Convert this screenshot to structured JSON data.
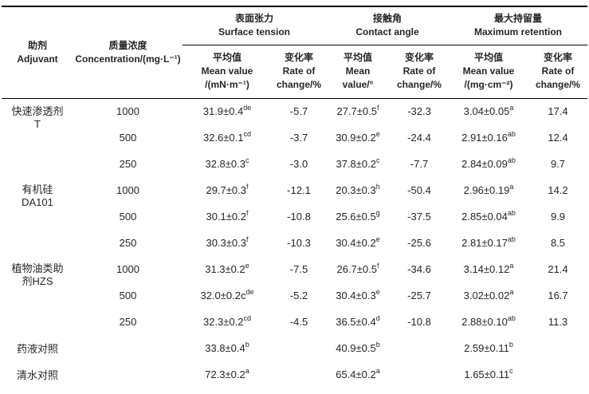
{
  "colors": {
    "background": "#ffffff",
    "text": "#262626",
    "rule_line": "#000000"
  },
  "table": {
    "groups": [
      "表面张力\nSurface tension",
      "接触角\nContact angle",
      "最大持留量\nMaximum retention"
    ],
    "col_headers": {
      "adjuvant": "助剂\nAdjuvant",
      "concentration": "质量浓度\nConcentration/(mg·L⁻¹)",
      "st_mean": "平均值\nMean value\n/(mN·m⁻¹)",
      "st_rate": "变化率\nRate of\nchange/%",
      "ca_mean": "平均值\nMean\nvalue/°",
      "ca_rate": "变化率\nRate of\nchange/%",
      "mr_mean": "平均值\nMean value\n/(mg·cm⁻²)",
      "mr_rate": "变化率\nRate of\nchange/%"
    },
    "rows": [
      {
        "label": "快速渗透剂\nT",
        "rowspan": 3,
        "cells": {
          "conc": "1000",
          "st_mean": {
            "v": "31.9±0.4",
            "s": "de"
          },
          "st_rate": "-5.7",
          "ca_mean": {
            "v": "27.7±0.5",
            "s": "f"
          },
          "ca_rate": "-32.3",
          "mr_mean": {
            "v": "3.04±0.05",
            "s": "a"
          },
          "mr_rate": "17.4"
        }
      },
      {
        "cells": {
          "conc": "500",
          "st_mean": {
            "v": "32.6±0.1",
            "s": "cd"
          },
          "st_rate": "-3.7",
          "ca_mean": {
            "v": "30.9±0.2",
            "s": "e"
          },
          "ca_rate": "-24.4",
          "mr_mean": {
            "v": "2.91±0.16",
            "s": "ab"
          },
          "mr_rate": "12.4"
        }
      },
      {
        "cells": {
          "conc": "250",
          "st_mean": {
            "v": "32.8±0.3",
            "s": "c"
          },
          "st_rate": "-3.0",
          "ca_mean": {
            "v": "37.8±0.2",
            "s": "c"
          },
          "ca_rate": "-7.7",
          "mr_mean": {
            "v": "2.84±0.09",
            "s": "ab"
          },
          "mr_rate": "9.7"
        }
      },
      {
        "label": "有机硅\nDA101",
        "rowspan": 3,
        "cells": {
          "conc": "1000",
          "st_mean": {
            "v": "29.7±0.3",
            "s": "f"
          },
          "st_rate": "-12.1",
          "ca_mean": {
            "v": "20.3±0.3",
            "s": "h"
          },
          "ca_rate": "-50.4",
          "mr_mean": {
            "v": "2.96±0.19",
            "s": "a"
          },
          "mr_rate": "14.2"
        }
      },
      {
        "cells": {
          "conc": "500",
          "st_mean": {
            "v": "30.1±0.2",
            "s": "f"
          },
          "st_rate": "-10.8",
          "ca_mean": {
            "v": "25.6±0.5",
            "s": "g"
          },
          "ca_rate": "-37.5",
          "mr_mean": {
            "v": "2.85±0.04",
            "s": "ab"
          },
          "mr_rate": "9.9"
        }
      },
      {
        "cells": {
          "conc": "250",
          "st_mean": {
            "v": "30.3±0.3",
            "s": "f"
          },
          "st_rate": "-10.3",
          "ca_mean": {
            "v": "30.4±0.2",
            "s": "e"
          },
          "ca_rate": "-25.6",
          "mr_mean": {
            "v": "2.81±0.17",
            "s": "ab"
          },
          "mr_rate": "8.5"
        }
      },
      {
        "label": "植物油类助\n剂HZS",
        "rowspan": 3,
        "cells": {
          "conc": "1000",
          "st_mean": {
            "v": "31.3±0.2",
            "s": "e"
          },
          "st_rate": "-7.5",
          "ca_mean": {
            "v": "26.7±0.5",
            "s": "f"
          },
          "ca_rate": "-34.6",
          "mr_mean": {
            "v": "3.14±0.12",
            "s": "a"
          },
          "mr_rate": "21.4"
        }
      },
      {
        "cells": {
          "conc": "500",
          "st_mean": {
            "v": "32.0±0.2c",
            "s": "de"
          },
          "st_rate": "-5.2",
          "ca_mean": {
            "v": "30.4±0.3",
            "s": "e"
          },
          "ca_rate": "-25.7",
          "mr_mean": {
            "v": "3.02±0.02",
            "s": "a"
          },
          "mr_rate": "16.7"
        }
      },
      {
        "cells": {
          "conc": "250",
          "st_mean": {
            "v": "32.3±0.2",
            "s": "cd"
          },
          "st_rate": "-4.5",
          "ca_mean": {
            "v": "36.5±0.4",
            "s": "d"
          },
          "ca_rate": "-10.8",
          "mr_mean": {
            "v": "2.88±0.10",
            "s": "ab"
          },
          "mr_rate": "11.3"
        }
      },
      {
        "label": "药液对照",
        "rowspan": 1,
        "cells": {
          "conc": "",
          "st_mean": {
            "v": "33.8±0.4",
            "s": "b"
          },
          "st_rate": "",
          "ca_mean": {
            "v": "40.9±0.5",
            "s": "b"
          },
          "ca_rate": "",
          "mr_mean": {
            "v": "2.59±0.11",
            "s": "b"
          },
          "mr_rate": ""
        }
      },
      {
        "label": "清水对照",
        "rowspan": 1,
        "cells": {
          "conc": "",
          "st_mean": {
            "v": "72.3±0.2",
            "s": "a"
          },
          "st_rate": "",
          "ca_mean": {
            "v": "65.4±0.2",
            "s": "a"
          },
          "ca_rate": "",
          "mr_mean": {
            "v": "1.65±0.11",
            "s": "c"
          },
          "mr_rate": ""
        }
      }
    ]
  }
}
